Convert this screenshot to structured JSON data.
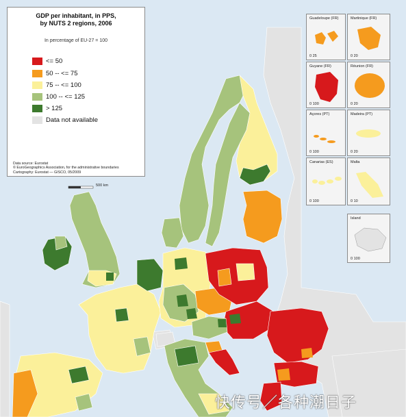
{
  "title": "GDP per inhabitant, in PPS,\nby NUTS 2 regions, 2006",
  "subtitle": "In percentage of EU-27 = 100",
  "legend": [
    {
      "label": "<= 50",
      "color": "#d7191c"
    },
    {
      "label": "50 -- <= 75",
      "color": "#f59b1e"
    },
    {
      "label": "75 -- <= 100",
      "color": "#fbf09a"
    },
    {
      "label": "100 -- <= 125",
      "color": "#a6c37c"
    },
    {
      "label": "> 125",
      "color": "#3d7a2e"
    },
    {
      "label": "Data not available",
      "color": "#e3e3e3"
    }
  ],
  "credits": [
    "Data source: Eurostat",
    "© EuroGeographics Association, for the administrative boundaries",
    "Cartography: Eurostat — GISCO, 05/2009"
  ],
  "scale_label": "500 km",
  "insets": [
    {
      "name": "Guadeloupe (FR)",
      "scale": "0   25"
    },
    {
      "name": "Martinique (FR)",
      "scale": "0   20"
    },
    {
      "name": "Guyane (FR)",
      "scale": "0   100"
    },
    {
      "name": "Réunion (FR)",
      "scale": "0   20"
    },
    {
      "name": "Açores (PT)",
      "scale": "0   100"
    },
    {
      "name": "Madeira (PT)",
      "scale": "0   20"
    },
    {
      "name": "Canarias (ES)",
      "scale": "0   100"
    },
    {
      "name": "Malta",
      "scale": "0   10"
    },
    {
      "name": "Island",
      "scale": "0   100"
    }
  ],
  "watermark": "快传号／各种潮日子",
  "colors": {
    "sea": "#dbe8f3",
    "non_eu": "#e3e3e3",
    "border": "#ffffff"
  }
}
